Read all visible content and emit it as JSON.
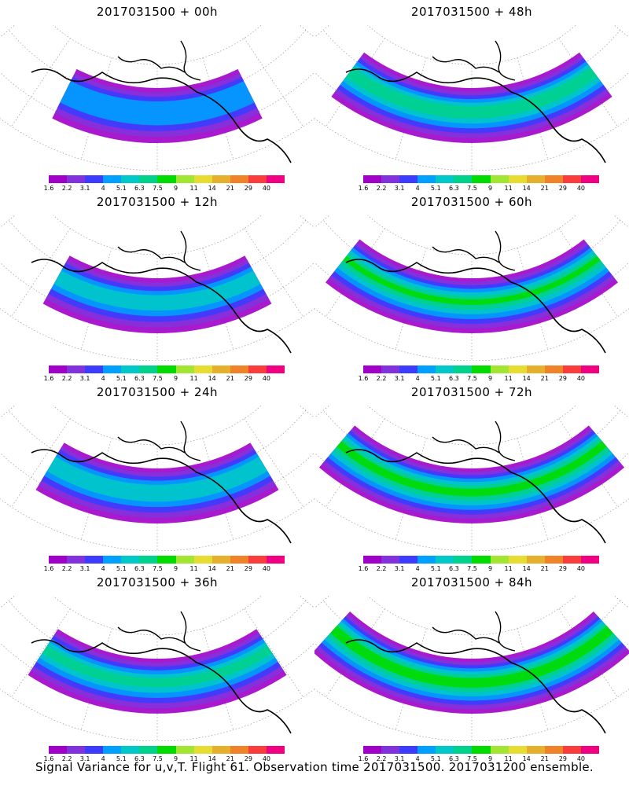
{
  "caption": "Signal Variance for u,v,T. Flight 61. Observation time 2017031500. 2017031200 ensemble.",
  "colorbar": {
    "labels": [
      "1.6",
      "2.2",
      "3.1",
      "4",
      "5.1",
      "6.3",
      "7.5",
      "9",
      "11",
      "14",
      "21",
      "29",
      "40"
    ],
    "colors": [
      "#a000c8",
      "#8232dc",
      "#3c3cff",
      "#00a0ff",
      "#00c8c8",
      "#00d28c",
      "#00dc00",
      "#a0e632",
      "#e6dc32",
      "#e6af2d",
      "#f08228",
      "#fa3c3c",
      "#f00082"
    ]
  },
  "panels": [
    {
      "title": "2017031500 + 00h",
      "intensity": 0.15
    },
    {
      "title": "2017031500 + 48h",
      "intensity": 0.55
    },
    {
      "title": "2017031500 + 12h",
      "intensity": 0.25
    },
    {
      "title": "2017031500 + 60h",
      "intensity": 0.62
    },
    {
      "title": "2017031500 + 24h",
      "intensity": 0.33
    },
    {
      "title": "2017031500 + 72h",
      "intensity": 0.7
    },
    {
      "title": "2017031500 + 36h",
      "intensity": 0.42
    },
    {
      "title": "2017031500 + 84h",
      "intensity": 0.78
    }
  ]
}
